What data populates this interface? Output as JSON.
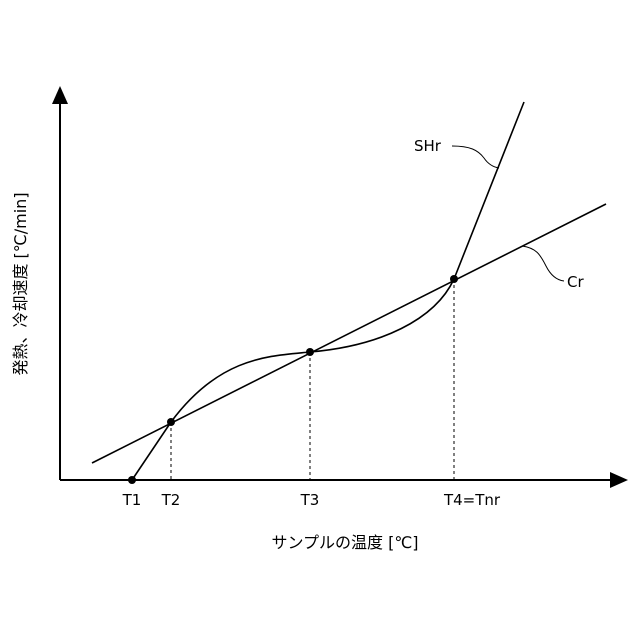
{
  "x_axis_title": "サンプルの温度 [℃]",
  "y_axis_title": "発熱、冷却速度 [℃/min]",
  "points": {
    "t1": "T1",
    "t2": "T2",
    "t3": "T3",
    "t4": "T4=Tnr"
  },
  "curves": {
    "heating": "SHr",
    "cooling": "Cr"
  },
  "colors": {
    "line": "#000000",
    "background": "#ffffff"
  }
}
